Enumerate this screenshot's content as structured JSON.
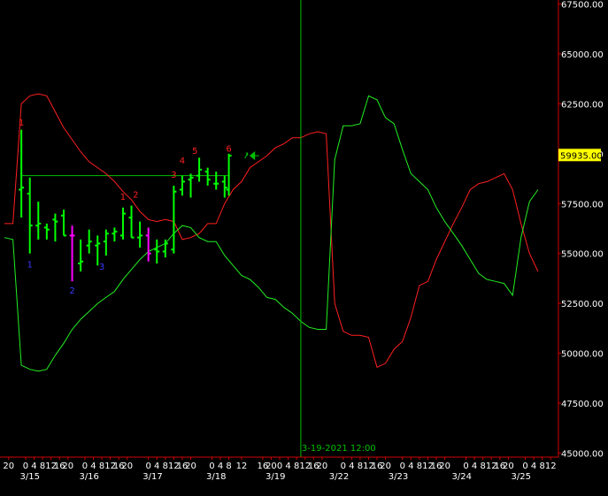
{
  "chart_data": {
    "type": "ohlc-bar",
    "y_axis": {
      "ticks": [
        67500,
        65000,
        62500,
        60000,
        57500,
        55000,
        52500,
        50000,
        47500,
        45000
      ],
      "tick_labels": [
        "67500.00",
        "65000.00",
        "62500.00",
        "60000.00",
        "57500.00",
        "55000.00",
        "52500.00",
        "50000.00",
        "47500.00",
        "45000.00"
      ],
      "ylim": [
        44800,
        67700
      ],
      "last_price": 59935,
      "last_price_label": "59935.00"
    },
    "x_axis": {
      "xlim": [
        0,
        130
      ],
      "hour_ticks": [
        {
          "x": 1,
          "label": "20"
        },
        {
          "x": 5,
          "label": "0"
        },
        {
          "x": 7,
          "label": "4"
        },
        {
          "x": 9,
          "label": "8"
        },
        {
          "x": 11,
          "label": "12"
        },
        {
          "x": 13,
          "label": "16"
        },
        {
          "x": 15,
          "label": "20"
        },
        {
          "x": 19,
          "label": "0"
        },
        {
          "x": 21,
          "label": "4"
        },
        {
          "x": 23,
          "label": "8"
        },
        {
          "x": 25,
          "label": "12"
        },
        {
          "x": 27,
          "label": "16"
        },
        {
          "x": 29,
          "label": "20"
        },
        {
          "x": 34,
          "label": "0"
        },
        {
          "x": 36,
          "label": "4"
        },
        {
          "x": 38,
          "label": "8"
        },
        {
          "x": 40,
          "label": "12"
        },
        {
          "x": 42,
          "label": "16"
        },
        {
          "x": 44,
          "label": "20"
        },
        {
          "x": 49,
          "label": "0"
        },
        {
          "x": 51,
          "label": "4"
        },
        {
          "x": 53,
          "label": "8"
        },
        {
          "x": 56,
          "label": "12"
        },
        {
          "x": 61,
          "label": "16"
        },
        {
          "x": 63,
          "label": "20"
        },
        {
          "x": 65,
          "label": "0"
        },
        {
          "x": 67,
          "label": "4"
        },
        {
          "x": 69,
          "label": "8"
        },
        {
          "x": 71,
          "label": "12"
        },
        {
          "x": 73,
          "label": "16"
        },
        {
          "x": 75,
          "label": "20"
        },
        {
          "x": 80,
          "label": "0"
        },
        {
          "x": 82,
          "label": "4"
        },
        {
          "x": 84,
          "label": "8"
        },
        {
          "x": 86,
          "label": "12"
        },
        {
          "x": 88,
          "label": "16"
        },
        {
          "x": 90,
          "label": "20"
        },
        {
          "x": 94,
          "label": "0"
        },
        {
          "x": 96,
          "label": "4"
        },
        {
          "x": 98,
          "label": "8"
        },
        {
          "x": 100,
          "label": "12"
        },
        {
          "x": 102,
          "label": "16"
        },
        {
          "x": 104,
          "label": "20"
        },
        {
          "x": 109,
          "label": "0"
        },
        {
          "x": 111,
          "label": "4"
        },
        {
          "x": 113,
          "label": "8"
        },
        {
          "x": 115,
          "label": "12"
        },
        {
          "x": 117,
          "label": "16"
        },
        {
          "x": 119,
          "label": "20"
        },
        {
          "x": 123,
          "label": "0"
        },
        {
          "x": 125,
          "label": "4"
        },
        {
          "x": 127,
          "label": "8"
        },
        {
          "x": 129,
          "label": "12"
        }
      ],
      "date_ticks": [
        {
          "x": 6,
          "label": "3/15"
        },
        {
          "x": 20,
          "label": "3/16"
        },
        {
          "x": 35,
          "label": "3/17"
        },
        {
          "x": 50,
          "label": "3/18"
        },
        {
          "x": 64,
          "label": "3/19"
        },
        {
          "x": 79,
          "label": "3/22"
        },
        {
          "x": 93,
          "label": "3/23"
        },
        {
          "x": 108,
          "label": "3/24"
        },
        {
          "x": 122,
          "label": "3/25"
        }
      ]
    },
    "crosshair": {
      "x": 70,
      "label": "3-19-2021 12:00"
    },
    "bars": [
      {
        "x": 4,
        "open": 58200,
        "high": 61200,
        "low": 56800,
        "close": 58300,
        "color": "#00ff00"
      },
      {
        "x": 6,
        "open": 58000,
        "high": 58800,
        "low": 55000,
        "close": 56400,
        "color": "#00ff00"
      },
      {
        "x": 8,
        "open": 56400,
        "high": 57600,
        "low": 55700,
        "close": 56500,
        "color": "#00ff00"
      },
      {
        "x": 10,
        "open": 56300,
        "high": 56500,
        "low": 55700,
        "close": 56200,
        "color": "#00ff00"
      },
      {
        "x": 12,
        "open": 56700,
        "high": 57000,
        "low": 55600,
        "close": 56600,
        "color": "#00ff00"
      },
      {
        "x": 14,
        "open": 56900,
        "high": 57200,
        "low": 55900,
        "close": 55900,
        "color": "#00ff00"
      },
      {
        "x": 16,
        "open": 55900,
        "high": 56400,
        "low": 53600,
        "close": 55900,
        "color": "#ff00ff"
      },
      {
        "x": 18,
        "open": 54500,
        "high": 55700,
        "low": 54100,
        "close": 54600,
        "color": "#00ff00"
      },
      {
        "x": 20,
        "open": 55400,
        "high": 56200,
        "low": 55000,
        "close": 55600,
        "color": "#00ff00"
      },
      {
        "x": 22,
        "open": 55400,
        "high": 55900,
        "low": 54400,
        "close": 55500,
        "color": "#00ff00"
      },
      {
        "x": 24,
        "open": 55600,
        "high": 56200,
        "low": 54900,
        "close": 56000,
        "color": "#00ff00"
      },
      {
        "x": 26,
        "open": 56000,
        "high": 56300,
        "low": 55600,
        "close": 56100,
        "color": "#00ff00"
      },
      {
        "x": 28,
        "open": 55900,
        "high": 57300,
        "low": 55700,
        "close": 57000,
        "color": "#00ff00"
      },
      {
        "x": 30,
        "open": 56800,
        "high": 57400,
        "low": 55800,
        "close": 55800,
        "color": "#00ff00"
      },
      {
        "x": 32,
        "open": 55800,
        "high": 56600,
        "low": 55300,
        "close": 55900,
        "color": "#00ff00"
      },
      {
        "x": 34,
        "open": 55900,
        "high": 56300,
        "low": 54600,
        "close": 55000,
        "color": "#ff00ff"
      },
      {
        "x": 36,
        "open": 55200,
        "high": 55700,
        "low": 54500,
        "close": 55100,
        "color": "#00ff00"
      },
      {
        "x": 38,
        "open": 55100,
        "high": 55700,
        "low": 54800,
        "close": 55500,
        "color": "#00ff00"
      },
      {
        "x": 40,
        "open": 55200,
        "high": 58400,
        "low": 55000,
        "close": 58100,
        "color": "#00ff00"
      },
      {
        "x": 42,
        "open": 58200,
        "high": 58900,
        "low": 57900,
        "close": 58600,
        "color": "#00ff00"
      },
      {
        "x": 44,
        "open": 58700,
        "high": 59000,
        "low": 57800,
        "close": 58800,
        "color": "#00ff00"
      },
      {
        "x": 46,
        "open": 58900,
        "high": 59800,
        "low": 58600,
        "close": 59200,
        "color": "#00ff00"
      },
      {
        "x": 48,
        "open": 59100,
        "high": 59300,
        "low": 58400,
        "close": 58700,
        "color": "#00ff00"
      },
      {
        "x": 50,
        "open": 58500,
        "high": 59100,
        "low": 58200,
        "close": 58500,
        "color": "#00ff00"
      },
      {
        "x": 52,
        "open": 58600,
        "high": 58900,
        "low": 57800,
        "close": 58300,
        "color": "#00ff00"
      },
      {
        "x": 53,
        "open": 58200,
        "high": 60000,
        "low": 57900,
        "close": 59900,
        "color": "#00ff00"
      }
    ],
    "horizontal_line": {
      "y": 58900,
      "x_start": 4,
      "x_end": 53
    },
    "red_line": [
      [
        0,
        56500
      ],
      [
        2,
        56500
      ],
      [
        4,
        62500
      ],
      [
        6,
        62900
      ],
      [
        8,
        63000
      ],
      [
        10,
        62900
      ],
      [
        12,
        62100
      ],
      [
        14,
        61300
      ],
      [
        16,
        60700
      ],
      [
        18,
        60100
      ],
      [
        20,
        59600
      ],
      [
        22,
        59300
      ],
      [
        24,
        59000
      ],
      [
        26,
        58600
      ],
      [
        28,
        58100
      ],
      [
        30,
        57700
      ],
      [
        32,
        57100
      ],
      [
        34,
        56700
      ],
      [
        36,
        56600
      ],
      [
        38,
        56700
      ],
      [
        40,
        56600
      ],
      [
        42,
        55700
      ],
      [
        44,
        55800
      ],
      [
        46,
        56000
      ],
      [
        48,
        56500
      ],
      [
        50,
        56500
      ],
      [
        52,
        57500
      ],
      [
        54,
        58200
      ],
      [
        56,
        58600
      ],
      [
        58,
        59300
      ],
      [
        60,
        59600
      ],
      [
        62,
        59900
      ],
      [
        64,
        60300
      ],
      [
        66,
        60500
      ],
      [
        68,
        60800
      ],
      [
        70,
        60800
      ],
      [
        72,
        61000
      ],
      [
        74,
        61100
      ],
      [
        76,
        61000
      ],
      [
        78,
        52500
      ],
      [
        80,
        51100
      ],
      [
        82,
        50900
      ],
      [
        84,
        50900
      ],
      [
        86,
        50800
      ],
      [
        88,
        49300
      ],
      [
        90,
        49500
      ],
      [
        92,
        50200
      ],
      [
        94,
        50600
      ],
      [
        96,
        51800
      ],
      [
        98,
        53400
      ],
      [
        100,
        53600
      ],
      [
        102,
        54700
      ],
      [
        104,
        55600
      ],
      [
        106,
        56500
      ],
      [
        108,
        57300
      ],
      [
        110,
        58200
      ],
      [
        112,
        58500
      ],
      [
        114,
        58600
      ],
      [
        116,
        58800
      ],
      [
        118,
        59000
      ],
      [
        120,
        58200
      ],
      [
        122,
        56500
      ],
      [
        124,
        55000
      ],
      [
        126,
        54100
      ]
    ],
    "green_line": [
      [
        0,
        55800
      ],
      [
        2,
        55700
      ],
      [
        4,
        49400
      ],
      [
        6,
        49200
      ],
      [
        8,
        49100
      ],
      [
        10,
        49200
      ],
      [
        12,
        49900
      ],
      [
        14,
        50500
      ],
      [
        16,
        51200
      ],
      [
        18,
        51700
      ],
      [
        20,
        52100
      ],
      [
        22,
        52500
      ],
      [
        24,
        52800
      ],
      [
        26,
        53100
      ],
      [
        28,
        53700
      ],
      [
        30,
        54200
      ],
      [
        32,
        54700
      ],
      [
        34,
        55100
      ],
      [
        36,
        55300
      ],
      [
        38,
        55500
      ],
      [
        40,
        56000
      ],
      [
        42,
        56400
      ],
      [
        44,
        56300
      ],
      [
        46,
        55800
      ],
      [
        48,
        55600
      ],
      [
        50,
        55600
      ],
      [
        52,
        54900
      ],
      [
        54,
        54400
      ],
      [
        56,
        53900
      ],
      [
        58,
        53700
      ],
      [
        60,
        53300
      ],
      [
        62,
        52800
      ],
      [
        64,
        52700
      ],
      [
        66,
        52300
      ],
      [
        68,
        52000
      ],
      [
        70,
        51600
      ],
      [
        72,
        51300
      ],
      [
        74,
        51200
      ],
      [
        76,
        51200
      ],
      [
        78,
        59700
      ],
      [
        80,
        61400
      ],
      [
        82,
        61400
      ],
      [
        84,
        61500
      ],
      [
        86,
        62900
      ],
      [
        88,
        62700
      ],
      [
        90,
        61800
      ],
      [
        92,
        61500
      ],
      [
        94,
        60200
      ],
      [
        96,
        59000
      ],
      [
        98,
        58600
      ],
      [
        100,
        58200
      ],
      [
        102,
        57300
      ],
      [
        104,
        56600
      ],
      [
        106,
        56000
      ],
      [
        108,
        55400
      ],
      [
        110,
        54700
      ],
      [
        112,
        54000
      ],
      [
        114,
        53700
      ],
      [
        116,
        53600
      ],
      [
        118,
        53500
      ],
      [
        120,
        52900
      ],
      [
        122,
        55800
      ],
      [
        124,
        57600
      ],
      [
        126,
        58200
      ]
    ],
    "wave_labels": [
      {
        "x": 4,
        "y": 61400,
        "text": "1",
        "color": "#ff2020"
      },
      {
        "x": 6,
        "y": 54300,
        "text": "1",
        "color": "#3a3aff"
      },
      {
        "x": 16,
        "y": 53000,
        "text": "2",
        "color": "#3a3aff"
      },
      {
        "x": 23,
        "y": 54200,
        "text": "3",
        "color": "#3a3aff"
      },
      {
        "x": 28,
        "y": 57700,
        "text": "1",
        "color": "#ff2020"
      },
      {
        "x": 31,
        "y": 57800,
        "text": "2",
        "color": "#ff2020"
      },
      {
        "x": 40,
        "y": 58800,
        "text": "3",
        "color": "#ff2020"
      },
      {
        "x": 42,
        "y": 59500,
        "text": "4",
        "color": "#ff2020"
      },
      {
        "x": 45,
        "y": 60000,
        "text": "5",
        "color": "#ff2020"
      },
      {
        "x": 53,
        "y": 60100,
        "text": "6",
        "color": "#ff2020"
      }
    ],
    "arrow_marker": {
      "x": 57,
      "y": 59900,
      "color": "#00c000"
    }
  }
}
